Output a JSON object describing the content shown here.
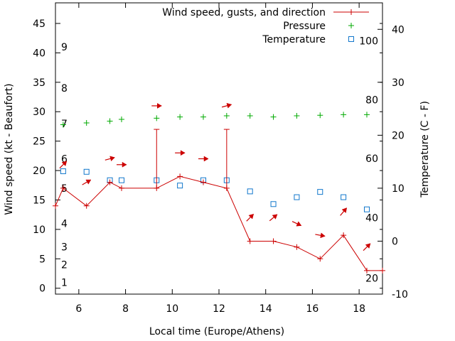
{
  "chart_data": {
    "type": "line",
    "xlabel": "Local time (Europe/Athens)",
    "ylabel": "Wind speed (kt - Beaufort)",
    "y2label": "Temperature (C - F)",
    "xlim": [
      5,
      19
    ],
    "ylim": [
      -1,
      48.5
    ],
    "y2lim": [
      -10,
      45
    ],
    "x_ticks": [
      6,
      8,
      10,
      12,
      14,
      16,
      18
    ],
    "y_ticks": [
      0,
      5,
      10,
      15,
      20,
      25,
      30,
      35,
      40,
      45
    ],
    "y2_ticks": [
      -10,
      0,
      10,
      20,
      30,
      40
    ],
    "beaufort_labels": [
      {
        "label": "1",
        "y": 1
      },
      {
        "label": "2",
        "y": 4
      },
      {
        "label": "3",
        "y": 7
      },
      {
        "label": "4",
        "y": 11
      },
      {
        "label": "5",
        "y": 17
      },
      {
        "label": "6",
        "y": 22
      },
      {
        "label": "7",
        "y": 28
      },
      {
        "label": "8",
        "y": 34
      },
      {
        "label": "9",
        "y": 41
      }
    ],
    "fahrenheit_labels": [
      {
        "label": "20",
        "y": -7
      },
      {
        "label": "40",
        "y": 4.4
      },
      {
        "label": "60",
        "y": 15.6
      },
      {
        "label": "80",
        "y": 26.7
      },
      {
        "label": "100",
        "y": 37.8
      }
    ],
    "legend": [
      {
        "label": "Wind speed, gusts, and direction",
        "color": "#cc0000",
        "marker": "line-plus"
      },
      {
        "label": "Pressure",
        "color": "#00aa00",
        "marker": "plus"
      },
      {
        "label": "Temperature",
        "color": "#1177cc",
        "marker": "square"
      }
    ],
    "wind": {
      "color": "#cc0000",
      "x": [
        5,
        5.33,
        6.33,
        7.33,
        7.83,
        9.33,
        10.33,
        11.33,
        12.33,
        13.33,
        14.33,
        15.33,
        16.33,
        17.33,
        18.33,
        19
      ],
      "y": [
        14,
        17,
        14,
        18,
        17,
        17,
        19,
        18,
        17,
        8,
        8,
        7,
        5,
        9,
        3,
        3
      ]
    },
    "gusts": [
      {
        "x": 9.33,
        "from": 17,
        "to": 27
      },
      {
        "x": 12.33,
        "from": 17,
        "to": 27
      }
    ],
    "direction_arrows": {
      "color": "#cc0000",
      "points": [
        {
          "x": 5.33,
          "y": 21,
          "dir_deg": 45
        },
        {
          "x": 6.33,
          "y": 18,
          "dir_deg": 30
        },
        {
          "x": 7.33,
          "y": 22,
          "dir_deg": 15
        },
        {
          "x": 7.83,
          "y": 21,
          "dir_deg": 0
        },
        {
          "x": 9.33,
          "y": 31,
          "dir_deg": 0
        },
        {
          "x": 10.33,
          "y": 23,
          "dir_deg": 0
        },
        {
          "x": 11.33,
          "y": 22,
          "dir_deg": 0
        },
        {
          "x": 12.33,
          "y": 31,
          "dir_deg": 15
        },
        {
          "x": 13.33,
          "y": 12,
          "dir_deg": 45
        },
        {
          "x": 14.33,
          "y": 12,
          "dir_deg": 40
        },
        {
          "x": 15.33,
          "y": 11,
          "dir_deg": -25
        },
        {
          "x": 16.33,
          "y": 9,
          "dir_deg": -10
        },
        {
          "x": 17.33,
          "y": 13,
          "dir_deg": 50
        },
        {
          "x": 18.33,
          "y": 7,
          "dir_deg": 45
        }
      ]
    },
    "pressure": {
      "color": "#00aa00",
      "x": [
        5.33,
        6.33,
        7.33,
        7.83,
        9.33,
        10.33,
        11.33,
        12.33,
        13.33,
        14.33,
        15.33,
        16.33,
        17.33,
        18.33
      ],
      "y": [
        27.8,
        28.1,
        28.4,
        28.7,
        28.9,
        29.1,
        29.1,
        29.3,
        29.3,
        29.1,
        29.3,
        29.4,
        29.5,
        29.5
      ]
    },
    "temperature": {
      "color": "#1177cc",
      "x": [
        5.33,
        6.33,
        7.33,
        7.83,
        9.33,
        10.33,
        11.33,
        12.33,
        13.33,
        14.33,
        15.33,
        16.33,
        17.33,
        18.33
      ],
      "y": [
        13.2,
        13.1,
        11.5,
        11.5,
        11.5,
        10.5,
        11.5,
        11.5,
        9.4,
        7.0,
        8.3,
        9.3,
        8.3,
        6.0
      ]
    }
  }
}
